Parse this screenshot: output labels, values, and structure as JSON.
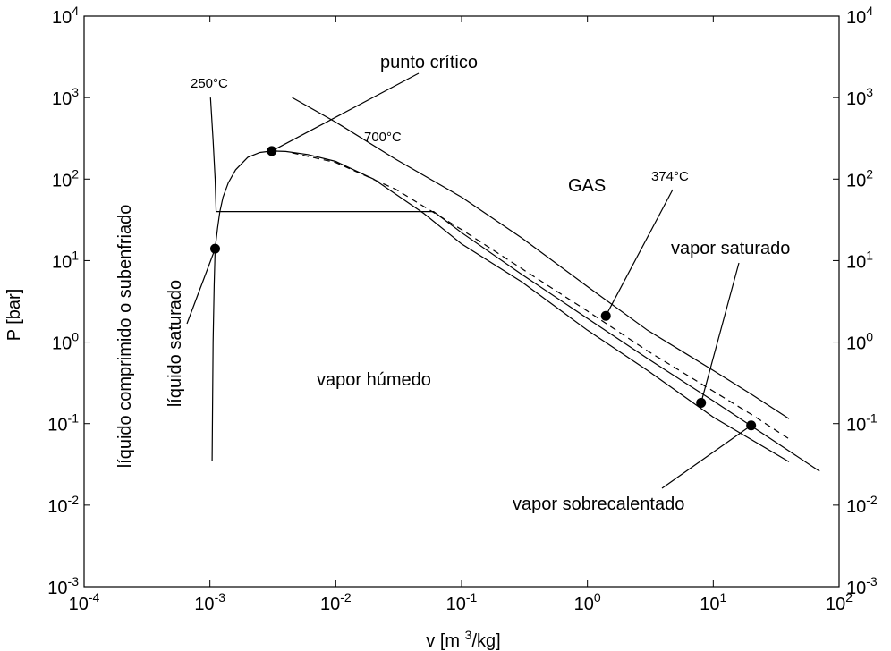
{
  "chart_data": {
    "type": "line",
    "x_scale": "log",
    "y_scale": "log",
    "xlim": [
      0.0001,
      100
    ],
    "ylim": [
      0.001,
      10000
    ],
    "xlabel": "v [m³/kg]",
    "ylabel": "P [bar]",
    "grid": false,
    "x_ticks": [
      {
        "value": 0.0001,
        "base": "10",
        "exp": "-4"
      },
      {
        "value": 0.001,
        "base": "10",
        "exp": "-3"
      },
      {
        "value": 0.01,
        "base": "10",
        "exp": "-2"
      },
      {
        "value": 0.1,
        "base": "10",
        "exp": "-1"
      },
      {
        "value": 1,
        "base": "10",
        "exp": "0"
      },
      {
        "value": 10,
        "base": "10",
        "exp": "1"
      },
      {
        "value": 100,
        "base": "10",
        "exp": "2"
      }
    ],
    "y_ticks": [
      {
        "value": 0.001,
        "base": "10",
        "exp": "-3"
      },
      {
        "value": 0.01,
        "base": "10",
        "exp": "-2"
      },
      {
        "value": 0.1,
        "base": "10",
        "exp": "-1"
      },
      {
        "value": 1,
        "base": "10",
        "exp": "0"
      },
      {
        "value": 10,
        "base": "10",
        "exp": "1"
      },
      {
        "value": 100,
        "base": "10",
        "exp": "2"
      },
      {
        "value": 1000,
        "base": "10",
        "exp": "3"
      },
      {
        "value": 10000,
        "base": "10",
        "exp": "4"
      }
    ],
    "series": [
      {
        "style": "solid",
        "points": [
          [
            0.00104,
            0.035
          ],
          [
            0.00106,
            1.0
          ],
          [
            0.00108,
            5.0
          ],
          [
            0.0011,
            14.0
          ],
          [
            0.00115,
            25.0
          ],
          [
            0.0012,
            40.0
          ],
          [
            0.00127,
            60.0
          ],
          [
            0.0014,
            90.0
          ],
          [
            0.0016,
            130.0
          ],
          [
            0.002,
            185.0
          ],
          [
            0.0025,
            212.0
          ],
          [
            0.0031,
            220.9
          ],
          [
            0.004,
            218.0
          ],
          [
            0.006,
            200.0
          ],
          [
            0.01,
            165.0
          ],
          [
            0.02,
            100.0
          ],
          [
            0.05,
            38.0
          ],
          [
            0.1,
            16.0
          ],
          [
            0.3,
            5.5
          ],
          [
            1.0,
            1.4
          ],
          [
            3.0,
            0.45
          ],
          [
            10.0,
            0.12
          ],
          [
            40.0,
            0.034
          ]
        ]
      },
      {
        "style": "solid",
        "points": [
          [
            0.00101,
            1000.0
          ],
          [
            0.00106,
            300.0
          ],
          [
            0.0011,
            100.0
          ],
          [
            0.00112,
            40.0
          ],
          [
            0.06,
            40.0
          ],
          [
            0.1,
            22.0
          ],
          [
            0.3,
            6.8
          ],
          [
            1.0,
            1.95
          ],
          [
            3.0,
            0.63
          ],
          [
            10.0,
            0.19
          ],
          [
            30.0,
            0.062
          ],
          [
            70.0,
            0.026
          ]
        ]
      },
      {
        "style": "dashed",
        "points": [
          [
            0.0045,
            210.0
          ],
          [
            0.01,
            160.0
          ],
          [
            0.03,
            75.0
          ],
          [
            0.1,
            24.0
          ],
          [
            0.3,
            8.0
          ],
          [
            1.0,
            2.4
          ],
          [
            3.0,
            0.78
          ],
          [
            10.0,
            0.25
          ],
          [
            20.0,
            0.13
          ],
          [
            40.0,
            0.065
          ]
        ]
      },
      {
        "style": "solid",
        "points": [
          [
            0.0045,
            1000.0
          ],
          [
            0.01,
            500.0
          ],
          [
            0.03,
            175.0
          ],
          [
            0.1,
            60.0
          ],
          [
            0.3,
            19.0
          ],
          [
            1.0,
            4.8
          ],
          [
            3.0,
            1.4
          ],
          [
            10.0,
            0.45
          ],
          [
            20.0,
            0.23
          ],
          [
            40.0,
            0.115
          ]
        ]
      }
    ],
    "markers": [
      {
        "x": 0.0011,
        "y": 14.0
      },
      {
        "x": 0.0031,
        "y": 220.9
      },
      {
        "x": 1.4,
        "y": 2.1
      },
      {
        "x": 8.0,
        "y": 0.18
      },
      {
        "x": 20.0,
        "y": 0.095
      }
    ],
    "annotations": [
      {
        "id": "punto-critico",
        "text": "punto crítico",
        "pointer": [
          0.0031,
          220.9
        ],
        "size": "large"
      },
      {
        "id": "t250",
        "text": "250°C",
        "size": "small"
      },
      {
        "id": "t700",
        "text": "700°C",
        "size": "small"
      },
      {
        "id": "t374",
        "text": "374°C",
        "pointer": [
          1.4,
          2.1
        ],
        "size": "small"
      },
      {
        "id": "gas",
        "text": "GAS",
        "size": "large"
      },
      {
        "id": "vapor-saturado",
        "text": "vapor saturado",
        "pointer": [
          8.0,
          0.18
        ],
        "size": "large"
      },
      {
        "id": "vapor-humedo",
        "text": "vapor húmedo",
        "size": "large"
      },
      {
        "id": "vapor-sobrecalentado",
        "text": "vapor sobrecalentado",
        "pointer": [
          20.0,
          0.095
        ],
        "size": "large"
      },
      {
        "id": "liquido-saturado",
        "text": "líquido saturado",
        "pointer": [
          0.0011,
          14.0
        ],
        "size": "large",
        "rotated": true
      },
      {
        "id": "liquido-comprimido",
        "text": "líquido comprimido o subenfriado",
        "size": "large",
        "rotated": true
      }
    ]
  }
}
